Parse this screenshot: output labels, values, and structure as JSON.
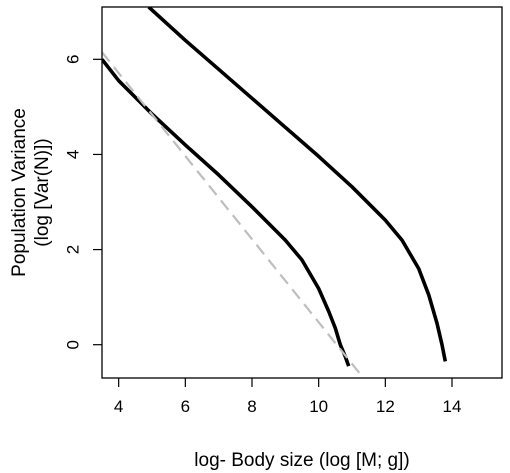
{
  "chart_data": {
    "type": "line",
    "title": "",
    "xlabel": "log- Body size (log [M; g])",
    "ylabel_lines": [
      "Population Variance",
      "(log [Var(N)])"
    ],
    "xlim": [
      3.5,
      15.5
    ],
    "ylim": [
      -0.7,
      7.1
    ],
    "xticks": [
      4,
      6,
      8,
      10,
      12,
      14
    ],
    "yticks": [
      0,
      2,
      4,
      6
    ],
    "grid": false,
    "legend": "none",
    "series": [
      {
        "style": "solid",
        "color": "#000000",
        "points": [
          [
            4.9,
            7.1
          ],
          [
            6,
            6.4
          ],
          [
            7,
            5.79
          ],
          [
            8,
            5.18
          ],
          [
            9,
            4.57
          ],
          [
            10,
            3.96
          ],
          [
            11,
            3.32
          ],
          [
            12,
            2.62
          ],
          [
            12.5,
            2.2
          ],
          [
            13,
            1.6
          ],
          [
            13.3,
            1.05
          ],
          [
            13.55,
            0.45
          ],
          [
            13.7,
            0.0
          ],
          [
            13.8,
            -0.35
          ]
        ]
      },
      {
        "style": "solid",
        "color": "#000000",
        "points": [
          [
            3.5,
            6.0
          ],
          [
            4,
            5.55
          ],
          [
            5,
            4.85
          ],
          [
            6,
            4.2
          ],
          [
            7,
            3.57
          ],
          [
            8,
            2.9
          ],
          [
            9,
            2.2
          ],
          [
            9.5,
            1.78
          ],
          [
            10,
            1.18
          ],
          [
            10.3,
            0.7
          ],
          [
            10.5,
            0.35
          ],
          [
            10.65,
            0.0
          ],
          [
            10.8,
            -0.25
          ],
          [
            10.9,
            -0.45
          ]
        ]
      },
      {
        "style": "dashed",
        "color": "#bebebe",
        "points": [
          [
            3.5,
            6.15
          ],
          [
            11.4,
            -0.75
          ]
        ]
      }
    ]
  }
}
